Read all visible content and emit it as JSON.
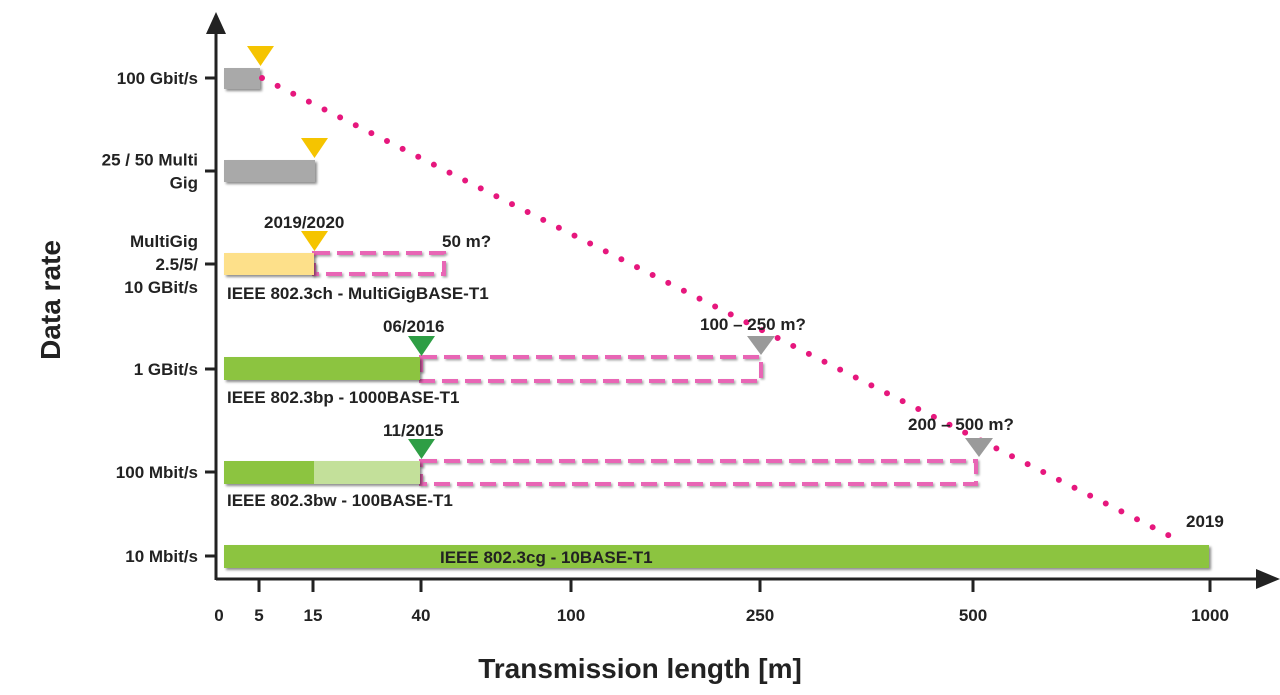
{
  "chart_data": {
    "type": "bar",
    "title": "",
    "xlabel": "Transmission length [m]",
    "ylabel": "Data rate",
    "x_scale": "non-linear (ticks as labelled)",
    "x_ticks": [
      "0",
      "5",
      "15",
      "40",
      "100",
      "250",
      "500",
      "1000"
    ],
    "y_categories": [
      [
        "100 Gbit/s"
      ],
      [
        "25 / 50 Multi",
        "Gig"
      ],
      [
        "MultiGig",
        "2.5/5/",
        "10 GBit/s"
      ],
      [
        "1 GBit/s"
      ],
      [
        "100 Mbit/s"
      ],
      [
        "10 Mbit/s"
      ]
    ],
    "series": [
      {
        "name": "100 Gbit/s",
        "solid_range_m": [
          0,
          5
        ],
        "color": "#a9a9a9",
        "marker_m": 5,
        "marker_color": "#f5c400"
      },
      {
        "name": "25 / 50 Multi Gig",
        "solid_range_m": [
          0,
          15
        ],
        "color": "#a9a9a9",
        "marker_m": 15,
        "marker_color": "#f5c400"
      },
      {
        "name": "IEEE 802.3ch - MultiGigBASE-T1",
        "solid_range_m": [
          0,
          15
        ],
        "color": "#fde08a",
        "marker_m": 15,
        "marker_color": "#f5c400",
        "date": "2019/2020",
        "dashed_range_m": [
          15,
          50
        ],
        "extension_label": "50 m?"
      },
      {
        "name": "IEEE 802.3bp - 1000BASE-T1",
        "solid_range_m": [
          0,
          40
        ],
        "color": "#8cc43f",
        "marker_m": 40,
        "marker_color": "#2e9e45",
        "date": "06/2016",
        "dashed_range_m": [
          40,
          250
        ],
        "extension_label": "100 – 250 m?"
      },
      {
        "name": "IEEE 802.3bw - 100BASE-T1",
        "solid_range_m": [
          0,
          15
        ],
        "color": "#8cc43f",
        "light_range_m": [
          15,
          40
        ],
        "light_color": "#c3e09a",
        "marker_m": 40,
        "marker_color": "#2e9e45",
        "date": "11/2015",
        "dashed_range_m": [
          40,
          500
        ],
        "extension_label": "200 – 500 m?"
      },
      {
        "name": "IEEE 802.3cg - 10BASE-T1",
        "solid_range_m": [
          0,
          1000
        ],
        "color": "#8cc43f",
        "date": "2019"
      }
    ],
    "trend_line": {
      "style": "dotted",
      "color": "#e6177d",
      "from": "100 Gbit/s at 5 m",
      "to": "10 Mbit/s at 1000 m"
    },
    "dashed_color": "#e866b5"
  },
  "labels": {
    "std_10g": "IEEE 802.3ch - MultiGigBASE-T1",
    "std_1g": "IEEE 802.3bp - 1000BASE-T1",
    "std_100m": "IEEE 802.3bw - 100BASE-T1",
    "std_10m": "IEEE 802.3cg - 10BASE-T1",
    "date_10g": "2019/2020",
    "date_1g": "06/2016",
    "date_100m": "11/2015",
    "date_10m": "2019",
    "ext_10g": "50 m?",
    "ext_1g": "100 – 250 m?",
    "ext_100m": "200 – 500 m?"
  },
  "colors": {
    "axis": "#222222",
    "grey_bar": "#a9a9a9",
    "yellow_bar": "#fde08a",
    "green_bar": "#8cc43f",
    "light_green_bar": "#c3e09a",
    "yellow_marker": "#f5c400",
    "green_marker": "#2e9e45",
    "grey_marker": "#9a9a9a",
    "dashed": "#e866b5",
    "trend": "#e6177d"
  }
}
